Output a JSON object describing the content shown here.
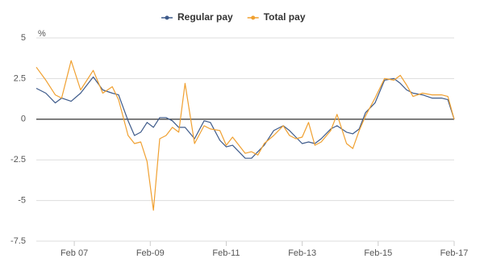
{
  "chart_data": {
    "type": "line",
    "y_label": "%",
    "x": [
      "2006-02",
      "2006-05",
      "2006-08",
      "2006-10",
      "2007-01",
      "2007-04",
      "2007-08",
      "2007-11",
      "2008-02",
      "2008-04",
      "2008-07",
      "2008-09",
      "2008-11",
      "2009-01",
      "2009-03",
      "2009-05",
      "2009-07",
      "2009-09",
      "2009-11",
      "2010-01",
      "2010-04",
      "2010-07",
      "2010-09",
      "2010-12",
      "2011-02",
      "2011-04",
      "2011-08",
      "2011-10",
      "2011-12",
      "2012-02",
      "2012-05",
      "2012-08",
      "2012-10",
      "2012-12",
      "2013-02",
      "2013-04",
      "2013-06",
      "2013-08",
      "2013-11",
      "2014-01",
      "2014-04",
      "2014-06",
      "2014-08",
      "2014-10",
      "2015-01",
      "2015-04",
      "2015-07",
      "2015-09",
      "2015-11",
      "2016-01",
      "2016-04",
      "2016-07",
      "2016-10",
      "2016-12",
      "2017-02"
    ],
    "series": [
      {
        "name": "Regular pay",
        "color": "#3d5a8a",
        "values": [
          1.9,
          1.6,
          1.0,
          1.3,
          1.1,
          1.6,
          2.6,
          1.8,
          1.6,
          1.5,
          -0.1,
          -1.0,
          -0.8,
          -0.2,
          -0.5,
          0.1,
          0.1,
          -0.1,
          -0.5,
          -0.5,
          -1.2,
          -0.1,
          -0.2,
          -1.3,
          -1.7,
          -1.6,
          -2.4,
          -2.4,
          -2.0,
          -1.6,
          -0.7,
          -0.4,
          -0.7,
          -1.1,
          -1.5,
          -1.4,
          -1.5,
          -1.2,
          -0.6,
          -0.4,
          -0.8,
          -0.9,
          -0.6,
          0.4,
          1.0,
          2.4,
          2.5,
          2.2,
          1.8,
          1.6,
          1.5,
          1.3,
          1.3,
          1.2,
          0.0
        ]
      },
      {
        "name": "Total pay",
        "color": "#f0a030",
        "values": [
          3.2,
          2.4,
          1.5,
          1.3,
          3.6,
          1.8,
          3.0,
          1.6,
          2.0,
          1.2,
          -1.0,
          -1.5,
          -1.4,
          -2.6,
          -5.6,
          -1.2,
          -1.0,
          -0.5,
          -0.8,
          2.2,
          -1.5,
          -0.4,
          -0.6,
          -0.7,
          -1.6,
          -1.1,
          -2.1,
          -2.0,
          -2.2,
          -1.5,
          -1.0,
          -0.4,
          -1.0,
          -1.2,
          -1.1,
          -0.2,
          -1.6,
          -1.4,
          -0.7,
          0.3,
          -1.5,
          -1.8,
          -0.7,
          0.2,
          1.3,
          2.5,
          2.4,
          2.7,
          2.1,
          1.4,
          1.6,
          1.5,
          1.5,
          1.4,
          0.0
        ]
      }
    ],
    "xlim": [
      "2006-02",
      "2017-02"
    ],
    "xticks": [
      {
        "value": "2007-02",
        "label": "Feb 07"
      },
      {
        "value": "2009-02",
        "label": "Feb-09"
      },
      {
        "value": "2011-02",
        "label": "Feb-11"
      },
      {
        "value": "2013-02",
        "label": "Feb-13"
      },
      {
        "value": "2015-02",
        "label": "Feb-15"
      },
      {
        "value": "2017-02",
        "label": "Feb-17"
      }
    ],
    "ylim": [
      -7.5,
      5
    ],
    "yticks": [
      5,
      2.5,
      0,
      -2.5,
      -5,
      -7.5
    ],
    "grid": true,
    "legend": "top"
  }
}
